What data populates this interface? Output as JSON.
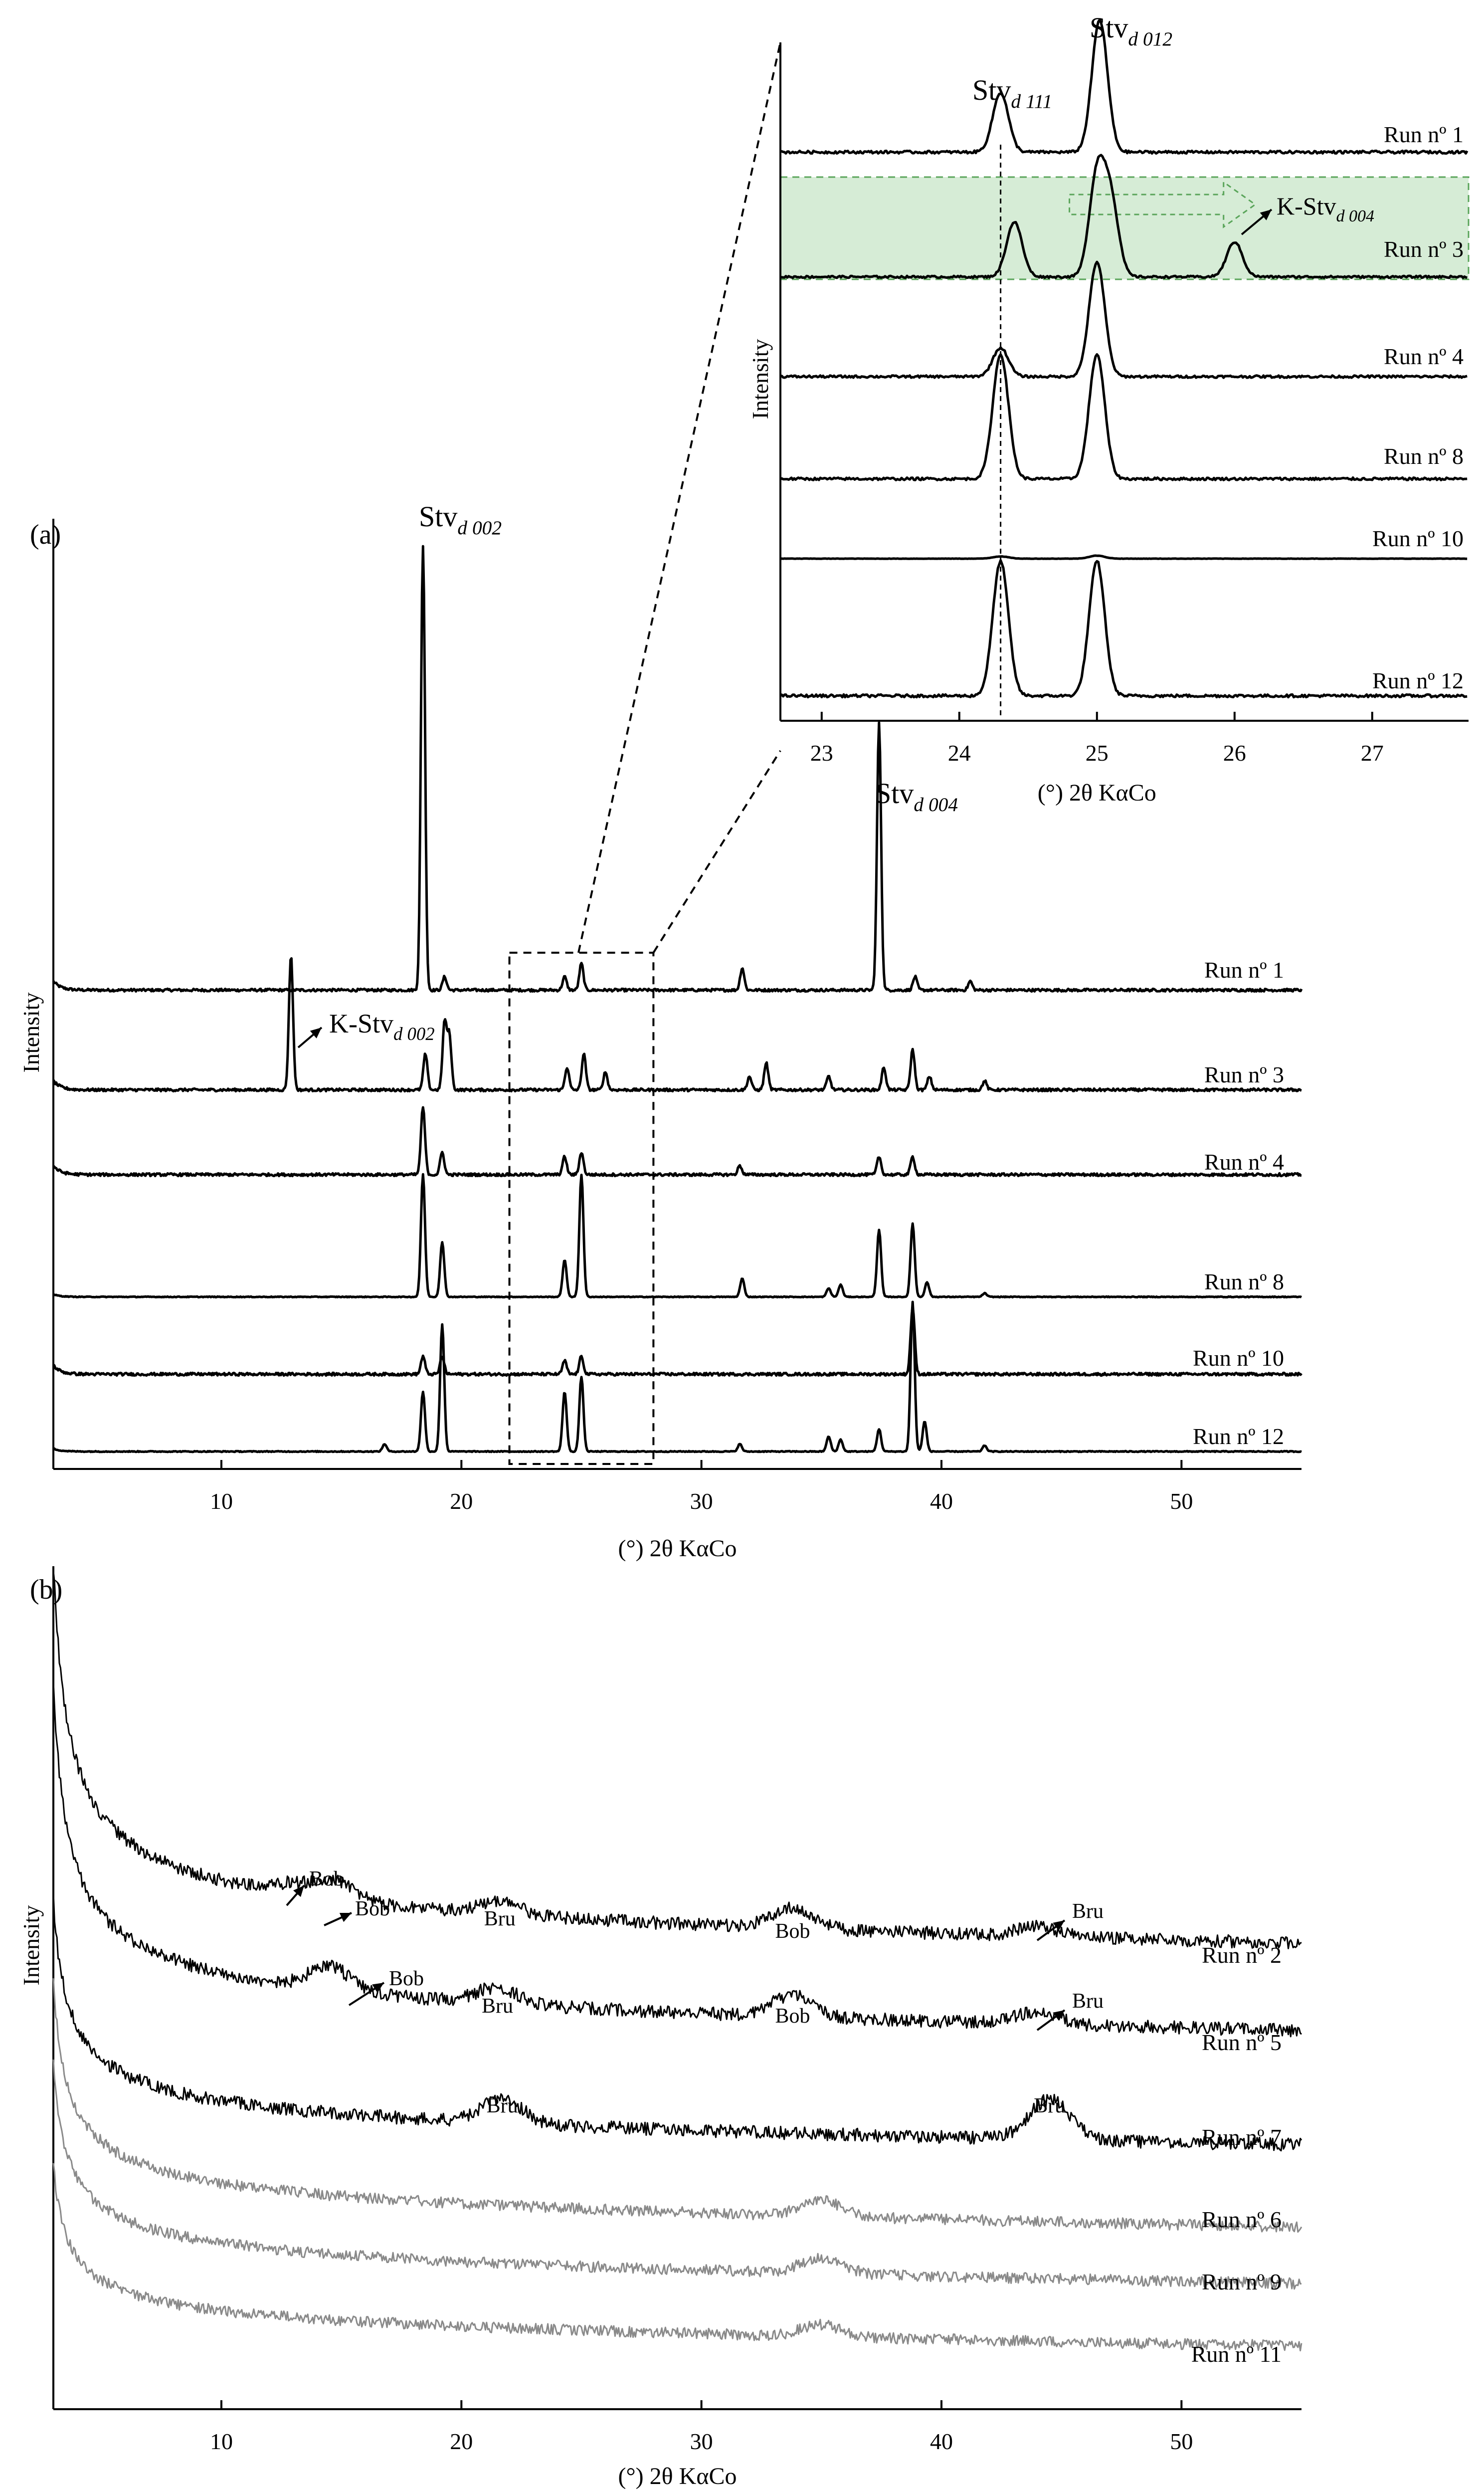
{
  "colors": {
    "trace": "#000000",
    "trace_gray": "#8a8a8a",
    "highlight_fill": "#d6ecd6",
    "highlight_stroke": "#5aa55a",
    "axis": "#000000"
  },
  "chart_data": [
    {
      "panel_label": "(a)",
      "type": "line",
      "xlabel": "(°) 2θ KαCo",
      "ylabel": "Intensity",
      "xlim": [
        3,
        55
      ],
      "xticks": [
        "10",
        "20",
        "30",
        "40",
        "50"
      ],
      "xtick_values": [
        10,
        20,
        30,
        40,
        50
      ],
      "zoom_box_x": [
        22,
        28
      ],
      "series": [
        {
          "name": "Run nº 1",
          "peaks": [
            [
              18.4,
              1.0
            ],
            [
              19.3,
              0.03
            ],
            [
              24.3,
              0.03
            ],
            [
              25.0,
              0.06
            ],
            [
              31.7,
              0.05
            ],
            [
              37.4,
              0.6
            ],
            [
              38.9,
              0.03
            ],
            [
              41.2,
              0.02
            ]
          ]
        },
        {
          "name": "Run nº 3",
          "peaks": [
            [
              12.9,
              0.3
            ],
            [
              18.5,
              0.08
            ],
            [
              19.3,
              0.15
            ],
            [
              19.5,
              0.12
            ],
            [
              24.4,
              0.05
            ],
            [
              25.1,
              0.08
            ],
            [
              26.0,
              0.04
            ],
            [
              32.0,
              0.03
            ],
            [
              32.7,
              0.06
            ],
            [
              35.3,
              0.03
            ],
            [
              37.6,
              0.05
            ],
            [
              38.8,
              0.09
            ],
            [
              39.5,
              0.03
            ],
            [
              41.8,
              0.02
            ]
          ]
        },
        {
          "name": "Run nº 4",
          "peaks": [
            [
              18.4,
              0.15
            ],
            [
              19.2,
              0.05
            ],
            [
              24.3,
              0.04
            ],
            [
              25.0,
              0.05
            ],
            [
              31.6,
              0.02
            ],
            [
              37.4,
              0.04
            ],
            [
              38.8,
              0.04
            ]
          ]
        },
        {
          "name": "Run nº 8",
          "peaks": [
            [
              18.4,
              1.0
            ],
            [
              19.2,
              0.45
            ],
            [
              24.3,
              0.3
            ],
            [
              25.0,
              1.0
            ],
            [
              31.7,
              0.15
            ],
            [
              35.3,
              0.07
            ],
            [
              35.8,
              0.1
            ],
            [
              37.4,
              0.55
            ],
            [
              38.8,
              0.6
            ],
            [
              39.4,
              0.12
            ],
            [
              41.8,
              0.03
            ]
          ]
        },
        {
          "name": "Run nº 10",
          "peaks": [
            [
              18.4,
              0.04
            ],
            [
              19.2,
              0.04
            ],
            [
              24.3,
              0.03
            ],
            [
              25.0,
              0.04
            ],
            [
              38.8,
              0.15
            ]
          ]
        },
        {
          "name": "Run nº 12",
          "peaks": [
            [
              16.8,
              0.05
            ],
            [
              18.4,
              0.4
            ],
            [
              19.2,
              0.85
            ],
            [
              24.3,
              0.4
            ],
            [
              25.0,
              0.5
            ],
            [
              31.6,
              0.05
            ],
            [
              35.3,
              0.1
            ],
            [
              35.8,
              0.08
            ],
            [
              37.4,
              0.15
            ],
            [
              38.8,
              1.0
            ],
            [
              39.3,
              0.2
            ],
            [
              41.8,
              0.04
            ]
          ]
        }
      ],
      "annotations": [
        {
          "base": "Stv",
          "sub": "d 002",
          "x": 18.4
        },
        {
          "base": "Stv",
          "sub": "d 004",
          "x": 37.4
        },
        {
          "base": "K-Stv",
          "sub": "d 002",
          "x": 12.9
        }
      ]
    },
    {
      "panel_label": "",
      "type": "line",
      "xlabel": "(°) 2θ KαCo",
      "ylabel": "Intensity",
      "xlim": [
        22.7,
        27.7
      ],
      "xticks": [
        "23",
        "24",
        "25",
        "26",
        "27"
      ],
      "xtick_values": [
        23,
        24,
        25,
        26,
        27
      ],
      "highlighted_series": "Run nº 3",
      "series": [
        {
          "name": "Run nº 1",
          "peaks": [
            [
              24.3,
              0.45
            ],
            [
              25.02,
              1.0
            ]
          ]
        },
        {
          "name": "Run nº 3",
          "peaks": [
            [
              24.4,
              0.55
            ],
            [
              25.0,
              1.0
            ],
            [
              25.1,
              0.75
            ],
            [
              26.0,
              0.35
            ]
          ]
        },
        {
          "name": "Run nº 4",
          "peaks": [
            [
              24.3,
              0.25
            ],
            [
              25.0,
              1.0
            ]
          ]
        },
        {
          "name": "Run nº 8",
          "peaks": [
            [
              24.3,
              1.0
            ],
            [
              25.0,
              1.0
            ]
          ]
        },
        {
          "name": "Run nº 10",
          "peaks": [
            [
              24.3,
              0.15
            ],
            [
              25.0,
              0.2
            ]
          ]
        },
        {
          "name": "Run nº 12",
          "peaks": [
            [
              24.3,
              1.0
            ],
            [
              25.0,
              1.0
            ]
          ]
        }
      ],
      "annotations": [
        {
          "base": "Stv",
          "sub": "d 111",
          "x": 24.3
        },
        {
          "base": "Stv",
          "sub": "d 012",
          "x": 25.0
        },
        {
          "base": "K-Stv",
          "sub": "d 004",
          "x": 26.0
        }
      ]
    },
    {
      "panel_label": "(b)",
      "type": "line",
      "xlabel": "(°) 2θ KαCo",
      "ylabel": "Intensity",
      "xlim": [
        3,
        55
      ],
      "xticks": [
        "10",
        "20",
        "30",
        "40",
        "50"
      ],
      "xtick_values": [
        10,
        20,
        30,
        40,
        50
      ],
      "series": [
        {
          "name": "Run nº 2",
          "color": "black",
          "bumps": [
            [
              13.0,
              0.5
            ],
            [
              14.8,
              0.9
            ],
            [
              21.6,
              0.6
            ],
            [
              33.8,
              1.0
            ],
            [
              44.0,
              0.5
            ]
          ]
        },
        {
          "name": "Run nº 5",
          "color": "black",
          "bumps": [
            [
              14.5,
              1.2
            ],
            [
              21.5,
              0.8
            ],
            [
              33.8,
              1.1
            ],
            [
              44.0,
              0.6
            ]
          ]
        },
        {
          "name": "Run nº 7",
          "color": "black",
          "bumps": [
            [
              21.7,
              1.2
            ],
            [
              44.5,
              2.0
            ]
          ]
        },
        {
          "name": "Run nº 6",
          "color": "gray",
          "bumps": [
            [
              35.0,
              0.8
            ]
          ]
        },
        {
          "name": "Run nº 9",
          "color": "gray",
          "bumps": [
            [
              35.0,
              0.8
            ]
          ]
        },
        {
          "name": "Run nº 11",
          "color": "gray",
          "bumps": [
            [
              35.0,
              0.6
            ]
          ]
        }
      ],
      "annotations": [
        {
          "text": "Bob",
          "x": 13.0,
          "series": "Run nº 2"
        },
        {
          "text": "Bob",
          "x": 14.8,
          "series": "Run nº 2"
        },
        {
          "text": "Bru",
          "x": 21.6,
          "series": "Run nº 2"
        },
        {
          "text": "Bob",
          "x": 33.8,
          "series": "Run nº 2"
        },
        {
          "text": "Bru",
          "x": 44.0,
          "series": "Run nº 2"
        },
        {
          "text": "Bob",
          "x": 14.5,
          "series": "Run nº 5"
        },
        {
          "text": "Bru",
          "x": 21.5,
          "series": "Run nº 5"
        },
        {
          "text": "Bob",
          "x": 33.8,
          "series": "Run nº 5"
        },
        {
          "text": "Bru",
          "x": 44.0,
          "series": "Run nº 5"
        },
        {
          "text": "Bru",
          "x": 21.7,
          "series": "Run nº 7"
        },
        {
          "text": "Bru",
          "x": 44.5,
          "series": "Run nº 7"
        }
      ]
    }
  ]
}
